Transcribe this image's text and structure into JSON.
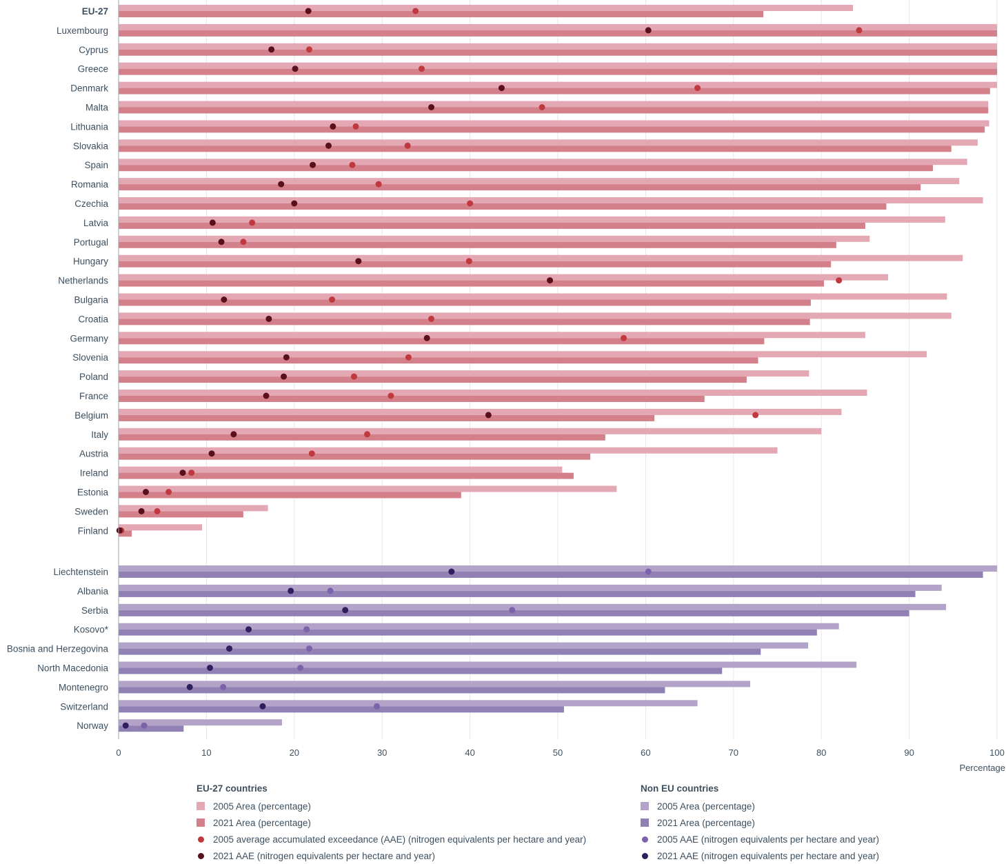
{
  "chart_data": {
    "type": "bar",
    "subtype": "horizontal-grouped-bar-with-dots",
    "xlabel": "Percentage",
    "xlim": [
      0,
      100
    ],
    "xticks": [
      "0",
      "10",
      "20",
      "30",
      "40",
      "50",
      "60",
      "70",
      "80",
      "90",
      "100"
    ],
    "grid": true,
    "legend_position": "bottom",
    "groups": [
      {
        "name": "EU-27 countries",
        "colors": {
          "area2005": "#e3a8b4",
          "area2021": "#d4808a",
          "aae2005": "#c0393f",
          "aae2021": "#5a0f1c"
        },
        "legend": [
          "2005 Area (percentage)",
          "2021 Area (percentage)",
          "2005 average accumulated exceedance (AAE) (nitrogen equivalents per hectare and year)",
          "2021 AAE (nitrogen equivalents per hectare and year)"
        ],
        "categories": [
          "EU-27",
          "Luxembourg",
          "Cyprus",
          "Greece",
          "Denmark",
          "Malta",
          "Lithuania",
          "Slovakia",
          "Spain",
          "Romania",
          "Czechia",
          "Latvia",
          "Portugal",
          "Hungary",
          "Netherlands",
          "Bulgaria",
          "Croatia",
          "Germany",
          "Slovenia",
          "Poland",
          "France",
          "Belgium",
          "Italy",
          "Austria",
          "Ireland",
          "Estonia",
          "Sweden",
          "Finland"
        ],
        "bold_categories": [
          "EU-27"
        ],
        "area2005": [
          83.6,
          100,
          100,
          100,
          100,
          99.0,
          99.1,
          97.8,
          96.6,
          95.7,
          98.4,
          94.1,
          85.5,
          96.1,
          87.6,
          94.3,
          94.8,
          85.0,
          92.0,
          78.6,
          85.2,
          82.3,
          80.0,
          75.0,
          50.5,
          56.7,
          17.0,
          9.5
        ],
        "area2021": [
          73.4,
          100,
          100,
          100,
          99.2,
          99.0,
          98.6,
          94.8,
          92.7,
          91.3,
          87.4,
          85.0,
          81.7,
          81.1,
          80.3,
          78.8,
          78.7,
          73.5,
          72.8,
          71.5,
          66.7,
          61.0,
          55.4,
          53.7,
          51.8,
          39.0,
          14.2,
          1.5
        ],
        "aae2005": [
          33.8,
          84.3,
          21.7,
          34.5,
          65.9,
          48.2,
          27.0,
          32.9,
          26.6,
          29.6,
          40.0,
          15.2,
          14.2,
          39.9,
          82.0,
          24.3,
          35.6,
          57.5,
          33.0,
          26.8,
          31.0,
          72.5,
          28.3,
          22.0,
          8.3,
          5.7,
          4.4,
          0.3
        ],
        "aae2021": [
          21.6,
          60.3,
          17.4,
          20.1,
          43.6,
          35.6,
          24.4,
          23.9,
          22.1,
          18.5,
          20.0,
          10.7,
          11.7,
          27.3,
          49.1,
          12.0,
          17.1,
          35.1,
          19.1,
          18.8,
          16.8,
          42.1,
          13.1,
          10.6,
          7.3,
          3.1,
          2.6,
          0.1
        ]
      },
      {
        "name": "Non EU countries",
        "colors": {
          "area2005": "#b3a3c8",
          "area2021": "#9180b4",
          "aae2005": "#7b62ab",
          "aae2021": "#2e1f5e"
        },
        "legend": [
          "2005 Area (percentage)",
          "2021 Area (percentage)",
          "2005 AAE (nitrogen equivalents per hectare and year)",
          "2021 AAE (nitrogen equivalents per hectare and year)"
        ],
        "categories": [
          "Liechtenstein",
          "Albania",
          "Serbia",
          "Kosovo*",
          "Bosnia and Herzegovina",
          "North Macedonia",
          "Montenegro",
          "Switzerland",
          "Norway"
        ],
        "bold_categories": [],
        "area2005": [
          100,
          93.7,
          94.2,
          82.0,
          78.5,
          84.0,
          71.9,
          65.9,
          18.6
        ],
        "area2021": [
          98.4,
          90.7,
          90.0,
          79.5,
          73.1,
          68.7,
          62.2,
          50.7,
          7.4
        ],
        "aae2005": [
          60.3,
          24.1,
          44.8,
          21.4,
          21.7,
          20.7,
          11.9,
          29.4,
          2.9
        ],
        "aae2021": [
          37.9,
          19.6,
          25.8,
          14.8,
          12.6,
          10.4,
          8.1,
          16.4,
          0.8
        ]
      }
    ]
  }
}
